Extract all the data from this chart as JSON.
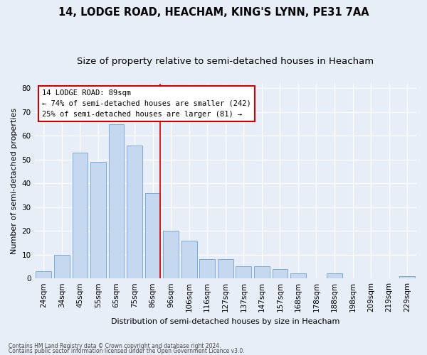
{
  "title": "14, LODGE ROAD, HEACHAM, KING'S LYNN, PE31 7AA",
  "subtitle": "Size of property relative to semi-detached houses in Heacham",
  "xlabel": "Distribution of semi-detached houses by size in Heacham",
  "ylabel": "Number of semi-detached properties",
  "categories": [
    "24sqm",
    "34sqm",
    "45sqm",
    "55sqm",
    "65sqm",
    "75sqm",
    "86sqm",
    "96sqm",
    "106sqm",
    "116sqm",
    "127sqm",
    "137sqm",
    "147sqm",
    "157sqm",
    "168sqm",
    "178sqm",
    "188sqm",
    "198sqm",
    "209sqm",
    "219sqm",
    "229sqm"
  ],
  "values": [
    3,
    10,
    53,
    49,
    65,
    56,
    36,
    20,
    16,
    8,
    8,
    5,
    5,
    4,
    2,
    0,
    2,
    0,
    0,
    0,
    1
  ],
  "bar_color": "#c5d8f0",
  "bar_edge_color": "#7aacda",
  "redline_color": "#cc0000",
  "annotation_box_color": "#ffffff",
  "annotation_box_edge": "#cc0000",
  "ylim": [
    0,
    82
  ],
  "yticks": [
    0,
    10,
    20,
    30,
    40,
    50,
    60,
    70,
    80
  ],
  "title_fontsize": 10.5,
  "subtitle_fontsize": 9.5,
  "axis_label_fontsize": 8,
  "tick_fontsize": 7.5,
  "footer1": "Contains HM Land Registry data © Crown copyright and database right 2024.",
  "footer2": "Contains public sector information licensed under the Open Government Licence v3.0.",
  "background_color": "#e8eef8",
  "grid_color": "#ffffff",
  "ann_line1": "14 LODGE ROAD: 89sqm",
  "ann_line2": "← 74% of semi-detached houses are smaller (242)",
  "ann_line3": "25% of semi-detached houses are larger (81) →"
}
